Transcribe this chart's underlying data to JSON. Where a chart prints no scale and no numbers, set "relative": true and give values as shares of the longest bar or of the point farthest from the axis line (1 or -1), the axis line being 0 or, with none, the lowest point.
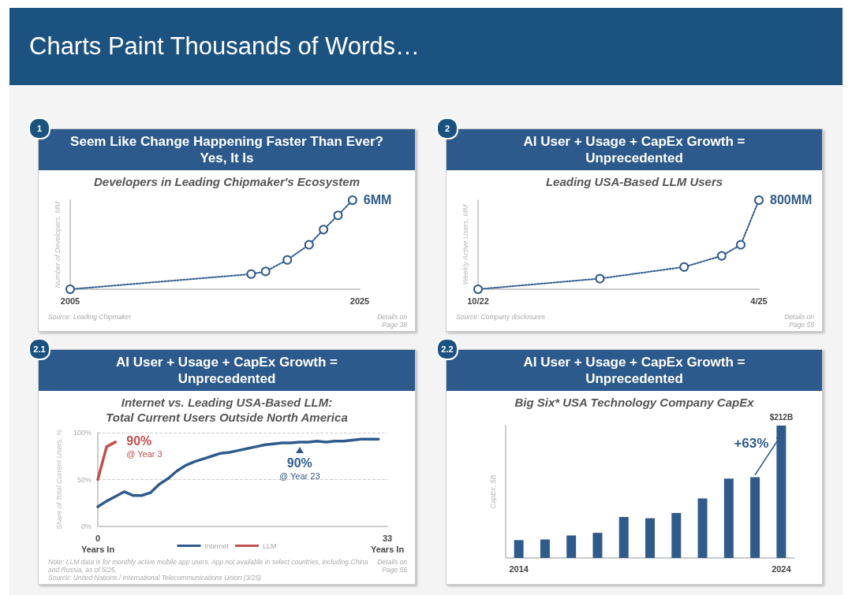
{
  "chart_data": [
    {
      "type": "line",
      "title": "Seem Like Change Happening Faster Than Ever? Yes, It Is",
      "subtitle": "Developers in Leading Chipmaker's Ecosystem",
      "ylabel": "Number of Developers, MM",
      "relative": true,
      "marker": "circle",
      "line_style": "dotted",
      "x": [
        2005,
        2017.5,
        2018.5,
        2020,
        2021.5,
        2022.5,
        2023.5,
        2024.5
      ],
      "series": [
        {
          "color": "#2f5b8c",
          "values": [
            0,
            0.17,
            0.2,
            0.33,
            0.5,
            0.67,
            0.83,
            1
          ]
        }
      ],
      "xlim": [
        2005,
        2025
      ],
      "xticks": [
        2005,
        2025
      ],
      "annotations": [
        "Charts Paint Thousands of Words…",
        "1",
        "Source: Leading Chipmaker",
        "Details on Page 38",
        {
          "text": "6MM",
          "x": 2024.5,
          "y": 1
        }
      ]
    },
    {
      "type": "line",
      "title": "AI User + Usage + CapEx Growth = Unprecedented",
      "subtitle": "Leading USA-Based LLM Users",
      "ylabel": "Weekly Active Users, MM",
      "relative": true,
      "marker": "circle",
      "line_style": "dotted",
      "x": [
        "2022-10",
        "2023-11",
        "2024-08",
        "2024-12",
        "2025-02",
        "2025-04"
      ],
      "series": [
        {
          "color": "#2f5b8c",
          "values": [
            0,
            0.12,
            0.25,
            0.375,
            0.5,
            1
          ]
        }
      ],
      "xlim": [
        "2022-10",
        "2025-04"
      ],
      "xticks": [
        {
          "value": "2022-10",
          "label": "10/22"
        },
        {
          "value": "2025-04",
          "label": "4/25"
        }
      ],
      "annotations": [
        "2",
        "Source: Company disclosures",
        "Details on Page 55",
        {
          "text": "800MM",
          "x": "2025-04",
          "y": 1
        }
      ]
    },
    {
      "type": "line",
      "title": "AI User + Usage + CapEx Growth = Unprecedented",
      "subtitle": "Internet vs. Leading USA-Based LLM:\nTotal Current Users Outside North America",
      "ylabel": "Share of Total Current Users, %",
      "grid": "y",
      "legend": "bottom",
      "line_style": "solid",
      "series": [
        {
          "name": "Internet",
          "color": "#2f5b8c",
          "x": [
            0,
            1,
            2,
            3,
            4,
            5,
            6,
            7,
            8,
            9,
            10,
            11,
            12,
            13,
            14,
            15,
            16,
            17,
            18,
            19,
            20,
            21,
            22,
            23,
            24,
            25,
            26,
            27,
            28,
            29,
            30,
            31,
            32
          ],
          "values": [
            21,
            27,
            32,
            37,
            33,
            33,
            36,
            45,
            51,
            59,
            65,
            69,
            72,
            75,
            78,
            79,
            81,
            83,
            85,
            87,
            88,
            89,
            89,
            90,
            90,
            91,
            90,
            91,
            91,
            92,
            93,
            93,
            93
          ]
        },
        {
          "name": "LLM",
          "color": "#c0504d",
          "x": [
            0,
            1,
            2
          ],
          "values": [
            50,
            85,
            90
          ]
        }
      ],
      "xlim": [
        0,
        33
      ],
      "xticks": [
        {
          "value": 0,
          "label": "0\nYears In"
        },
        {
          "value": 33,
          "label": "33\nYears In"
        }
      ],
      "ylim": [
        0,
        100
      ],
      "yticks": [
        {
          "value": 0,
          "label": "0%"
        },
        {
          "value": 50,
          "label": "50%"
        },
        {
          "value": 100,
          "label": "100%"
        }
      ],
      "annotations": [
        "2.1",
        "Note: LLM data is for monthly active mobile app users. App not available in select countries, including China and Russia, as of 5/25.",
        "Source: United Nations / International Telecommunications Union (3/25)",
        "Details on Page 56",
        {
          "text": "90%\n@ Year 3",
          "x": 2,
          "y": 90
        },
        {
          "text": "90%\n@ Year 23",
          "x": 23,
          "y": 90
        }
      ]
    },
    {
      "type": "bar",
      "title": "AI User + Usage + CapEx Growth = Unprecedented",
      "subtitle": "Big Six* USA Technology Company CapEx",
      "ylabel": "CapEx, $B",
      "relative": true,
      "categories": [
        "2014",
        null,
        null,
        null,
        null,
        null,
        null,
        null,
        null,
        null,
        "2024"
      ],
      "series": [
        {
          "color": "#2f5b8c",
          "values": [
            0.135,
            0.14,
            0.17,
            0.19,
            0.31,
            0.3,
            0.34,
            0.45,
            0.6,
            0.61,
            1
          ]
        }
      ],
      "annotations": [
        "2.2",
        "+63%",
        {
          "text": "$212B",
          "x": "2024",
          "y": 1
        }
      ]
    }
  ]
}
